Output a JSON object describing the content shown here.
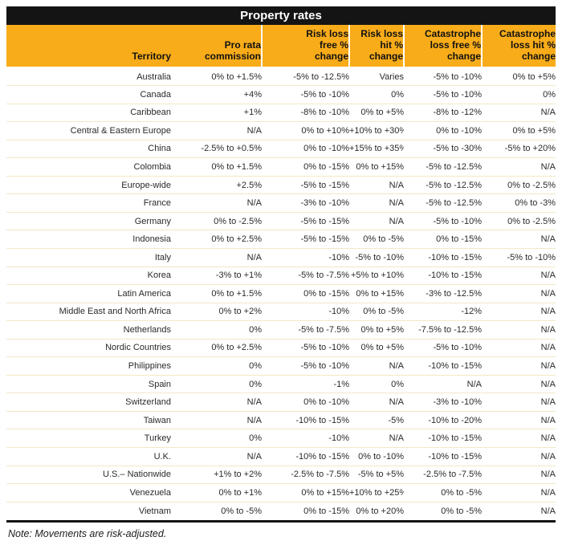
{
  "title": "Property rates",
  "note": "Note: Movements are risk-adjusted.",
  "colors": {
    "title_bar_bg": "#141414",
    "title_text": "#FFFFFF",
    "header_bg": "#F8AC19",
    "header_text": "#111111",
    "row_divider": "#F3E7C6",
    "bottom_rule": "#141414"
  },
  "table": {
    "columns": [
      "Territory",
      "Pro rata\ncommission",
      "Risk loss\nfree %\nchange",
      "Risk loss\nhit %\nchange",
      "Catastrophe\nloss free %\nchange",
      "Catastrophe\nloss hit %\nchange"
    ],
    "rows": [
      [
        "Australia",
        "0% to +1.5%",
        "-5% to -12.5%",
        "Varies",
        "-5% to -10%",
        "0% to +5%"
      ],
      [
        "Canada",
        "+4%",
        "-5% to -10%",
        "0%",
        "-5% to -10%",
        "0%"
      ],
      [
        "Caribbean",
        "+1%",
        "-8% to -10%",
        "0% to +5%",
        "-8% to -12%",
        "N/A"
      ],
      [
        "Central & Eastern Europe",
        "N/A",
        "0% to +10%",
        "+10% to +30%",
        "0% to -10%",
        "0% to +5%"
      ],
      [
        "China",
        "-2.5% to +0.5%",
        "0% to -10%",
        "+15% to +35%",
        "-5% to -30%",
        "-5% to +20%"
      ],
      [
        "Colombia",
        "0% to +1.5%",
        "0% to -15%",
        "0% to +15%",
        "-5% to -12.5%",
        "N/A"
      ],
      [
        "Europe-wide",
        "+2.5%",
        "-5% to -15%",
        "N/A",
        "-5% to -12.5%",
        "0% to -2.5%"
      ],
      [
        "France",
        "N/A",
        "-3% to -10%",
        "N/A",
        "-5% to -12.5%",
        "0% to -3%"
      ],
      [
        "Germany",
        "0% to -2.5%",
        "-5% to -15%",
        "N/A",
        "-5% to -10%",
        "0% to -2.5%"
      ],
      [
        "Indonesia",
        "0% to +2.5%",
        "-5% to -15%",
        "0% to -5%",
        "0% to -15%",
        "N/A"
      ],
      [
        "Italy",
        "N/A",
        "-10%",
        "-5% to -10%",
        "-10% to -15%",
        "-5% to -10%"
      ],
      [
        "Korea",
        "-3% to +1%",
        "-5% to -7.5%",
        "+5% to +10%",
        "-10% to -15%",
        "N/A"
      ],
      [
        "Latin America",
        "0% to +1.5%",
        "0% to -15%",
        "0% to +15%",
        "-3% to -12.5%",
        "N/A"
      ],
      [
        "Middle East and North Africa",
        "0% to +2%",
        "-10%",
        "0% to -5%",
        "-12%",
        "N/A"
      ],
      [
        "Netherlands",
        "0%",
        "-5% to -7.5%",
        "0% to +5%",
        "-7.5% to -12.5%",
        "N/A"
      ],
      [
        "Nordic Countries",
        "0% to +2.5%",
        "-5% to -10%",
        "0% to +5%",
        "-5% to -10%",
        "N/A"
      ],
      [
        "Philippines",
        "0%",
        "-5% to -10%",
        "N/A",
        "-10% to -15%",
        "N/A"
      ],
      [
        "Spain",
        "0%",
        "-1%",
        "0%",
        "N/A",
        "N/A"
      ],
      [
        "Switzerland",
        "N/A",
        "0% to -10%",
        "N/A",
        "-3% to -10%",
        "N/A"
      ],
      [
        "Taiwan",
        "N/A",
        "-10% to -15%",
        "-5%",
        "-10% to -20%",
        "N/A"
      ],
      [
        "Turkey",
        "0%",
        "-10%",
        "N/A",
        "-10% to -15%",
        "N/A"
      ],
      [
        "U.K.",
        "N/A",
        "-10% to -15%",
        "0% to -10%",
        "-10% to -15%",
        "N/A"
      ],
      [
        "U.S.– Nationwide",
        "+1% to +2%",
        "-2.5% to -7.5%",
        "-5% to +5%",
        "-2.5% to -7.5%",
        "N/A"
      ],
      [
        "Venezuela",
        "0% to +1%",
        "0% to +15%",
        "+10% to +25%",
        "0% to -5%",
        "N/A"
      ],
      [
        "Vietnam",
        "0% to -5%",
        "0% to -15%",
        "0% to +20%",
        "0% to -5%",
        "N/A"
      ]
    ]
  }
}
